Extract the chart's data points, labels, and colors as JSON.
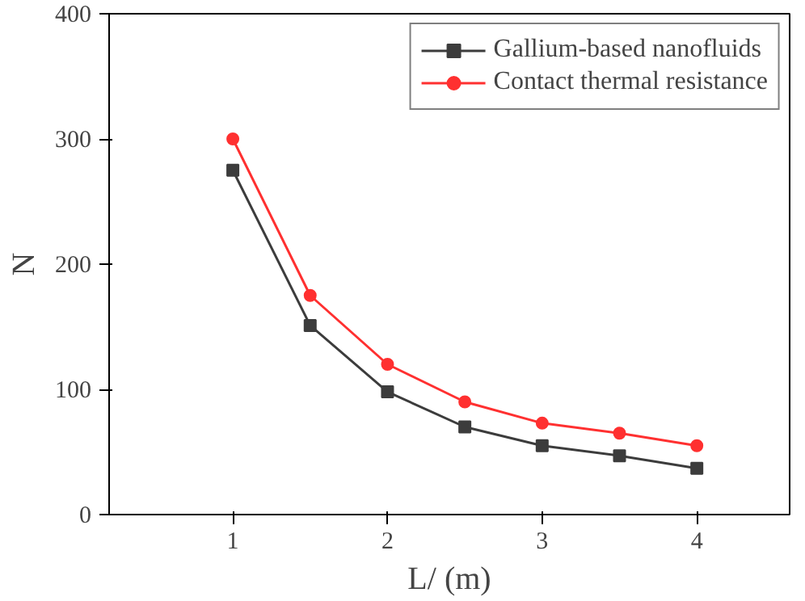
{
  "chart_data": {
    "type": "line",
    "xlabel": "L/ (m)",
    "ylabel": "N",
    "x": [
      1,
      1.5,
      2,
      2.5,
      3,
      3.5,
      4
    ],
    "series": [
      {
        "name": "Gallium-based nanofluids",
        "color": "#3c3c3c",
        "marker": "square",
        "values": [
          275,
          151,
          98,
          70,
          55,
          47,
          37
        ]
      },
      {
        "name": "Contact thermal resistance",
        "color": "#ff3030",
        "marker": "circle",
        "values": [
          300,
          175,
          120,
          90,
          73,
          65,
          55
        ]
      }
    ],
    "xlim": [
      0.2,
      4.6
    ],
    "ylim": [
      0,
      400
    ],
    "xticks": [
      1,
      2,
      3,
      4
    ],
    "yticks": [
      0,
      100,
      200,
      300,
      400
    ],
    "grid": false,
    "legend": "top right"
  }
}
